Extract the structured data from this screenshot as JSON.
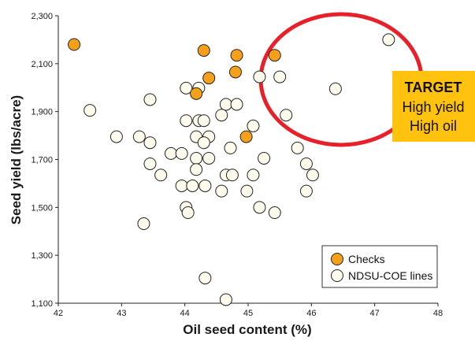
{
  "chart_data": {
    "type": "scatter",
    "title": "",
    "xlabel": "Oil seed content (%)",
    "ylabel": "Seed yield (lbs/acre)",
    "xlim": [
      42,
      48
    ],
    "ylim": [
      1100,
      2300
    ],
    "x_ticks": [
      "42",
      "43",
      "44",
      "45",
      "46",
      "47",
      "48"
    ],
    "y_ticks": [
      "1,100",
      "1,300",
      "1,500",
      "1,700",
      "1,900",
      "2,100",
      "2,300"
    ],
    "grid": false,
    "legend_position": "bottom-right",
    "series": [
      {
        "name": "Checks",
        "color": "#f5a01a",
        "points": [
          [
            42.25,
            2180
          ],
          [
            44.3,
            2155
          ],
          [
            44.82,
            2135
          ],
          [
            45.42,
            2135
          ],
          [
            44.8,
            2065
          ],
          [
            44.38,
            2040
          ],
          [
            44.18,
            1975
          ],
          [
            44.97,
            1795
          ]
        ]
      },
      {
        "name": "NDSU-COE lines",
        "color": "#fffbec",
        "points": [
          [
            47.22,
            2200
          ],
          [
            45.18,
            2045
          ],
          [
            45.5,
            2045
          ],
          [
            46.38,
            1995
          ],
          [
            44.02,
            1998
          ],
          [
            44.22,
            1998
          ],
          [
            43.45,
            1950
          ],
          [
            42.5,
            1905
          ],
          [
            44.65,
            1930
          ],
          [
            44.82,
            1930
          ],
          [
            45.6,
            1885
          ],
          [
            44.58,
            1885
          ],
          [
            44.02,
            1862
          ],
          [
            44.22,
            1862
          ],
          [
            44.3,
            1862
          ],
          [
            45.08,
            1840
          ],
          [
            42.92,
            1795
          ],
          [
            43.28,
            1795
          ],
          [
            44.18,
            1795
          ],
          [
            44.38,
            1795
          ],
          [
            43.45,
            1770
          ],
          [
            44.3,
            1770
          ],
          [
            44.72,
            1748
          ],
          [
            45.78,
            1748
          ],
          [
            43.78,
            1725
          ],
          [
            43.95,
            1725
          ],
          [
            45.25,
            1705
          ],
          [
            44.18,
            1705
          ],
          [
            44.38,
            1705
          ],
          [
            45.92,
            1682
          ],
          [
            43.45,
            1682
          ],
          [
            43.62,
            1635
          ],
          [
            44.18,
            1658
          ],
          [
            44.65,
            1635
          ],
          [
            44.75,
            1635
          ],
          [
            45.08,
            1635
          ],
          [
            46.02,
            1635
          ],
          [
            43.95,
            1590
          ],
          [
            44.12,
            1590
          ],
          [
            44.32,
            1590
          ],
          [
            44.58,
            1568
          ],
          [
            44.98,
            1568
          ],
          [
            45.92,
            1568
          ],
          [
            44.02,
            1500
          ],
          [
            44.05,
            1478
          ],
          [
            45.18,
            1500
          ],
          [
            45.42,
            1478
          ],
          [
            43.35,
            1432
          ],
          [
            44.32,
            1205
          ],
          [
            44.65,
            1115
          ]
        ]
      }
    ],
    "annotations": {
      "target_box": {
        "title": "TARGET",
        "lines": [
          "High yield",
          "High oil"
        ],
        "background": "#ffc20e"
      },
      "ellipse_color": "#e8202a"
    }
  }
}
